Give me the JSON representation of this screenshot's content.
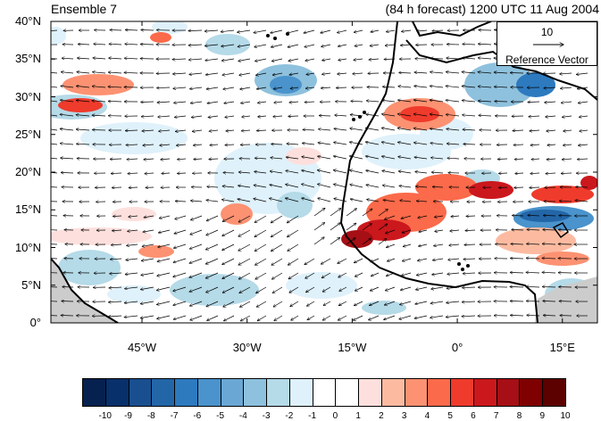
{
  "title_left": "Ensemble 7",
  "title_right": "(84 h forecast) 1200 UTC 11 Aug 2004",
  "map": {
    "lat_range": [
      0,
      40
    ],
    "lon_range": [
      -58,
      20
    ],
    "y_ticks": [
      {
        "lat": 40,
        "label": "40°N"
      },
      {
        "lat": 35,
        "label": "35°N"
      },
      {
        "lat": 30,
        "label": "30°N"
      },
      {
        "lat": 25,
        "label": "25°N"
      },
      {
        "lat": 20,
        "label": "20°N"
      },
      {
        "lat": 15,
        "label": "15°N"
      },
      {
        "lat": 10,
        "label": "10°N"
      },
      {
        "lat": 5,
        "label": "5°N"
      },
      {
        "lat": 0,
        "label": "0°"
      }
    ],
    "x_ticks": [
      {
        "lon": -45,
        "label": "45°W"
      },
      {
        "lon": -30,
        "label": "30°W"
      },
      {
        "lon": -15,
        "label": "15°W"
      },
      {
        "lon": 0,
        "label": "0°"
      },
      {
        "lon": 15,
        "label": "15°E"
      }
    ],
    "land_color": "#cccccc",
    "coast_color": "#000000",
    "reference_vector": {
      "magnitude": "10",
      "label": "Reference Vector"
    }
  },
  "colorbar": {
    "labels": [
      "-10",
      "-9",
      "-8",
      "-7",
      "-6",
      "-5",
      "-4",
      "-3",
      "-2",
      "-1",
      "0",
      "1",
      "2",
      "3",
      "4",
      "5",
      "6",
      "7",
      "8",
      "9",
      "10"
    ],
    "colors": [
      "#06214f",
      "#08306b",
      "#1a4f8f",
      "#2366a8",
      "#2d7abf",
      "#4a93cc",
      "#6ba7d4",
      "#8ec1dd",
      "#b5dae8",
      "#dff1fb",
      "#ffffff",
      "#ffffff",
      "#fde0dd",
      "#fcbba1",
      "#fc9272",
      "#fb6a4a",
      "#ef3b2c",
      "#cb181d",
      "#a50f15",
      "#7f0000",
      "#5c0000"
    ]
  }
}
